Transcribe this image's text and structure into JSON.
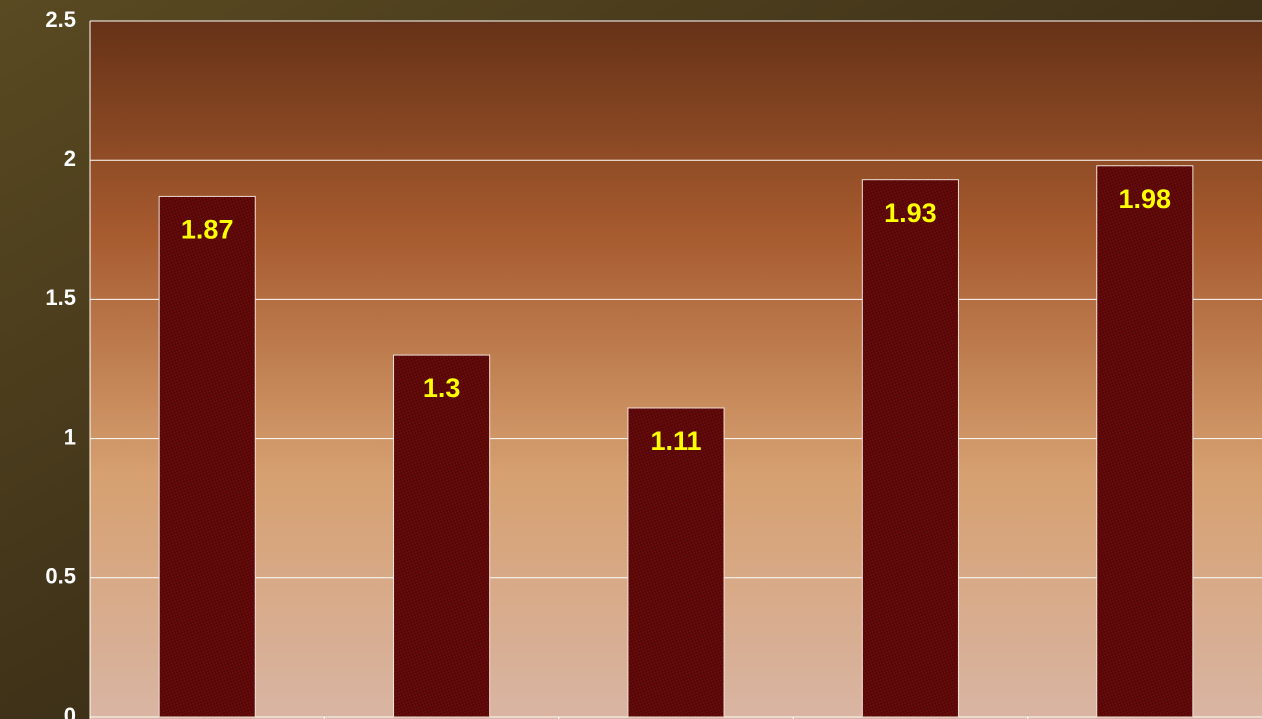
{
  "chart_data": {
    "type": "bar",
    "categories": [
      null,
      null,
      null,
      null,
      null
    ],
    "values": [
      1.87,
      1.3,
      1.11,
      1.93,
      1.98
    ],
    "color": "#7a0c0c",
    "label_color": "#ffff00",
    "ylim": [
      0,
      2.5
    ],
    "yticks": [
      0,
      0.5,
      1,
      1.5,
      2,
      2.5
    ],
    "grid": true
  }
}
